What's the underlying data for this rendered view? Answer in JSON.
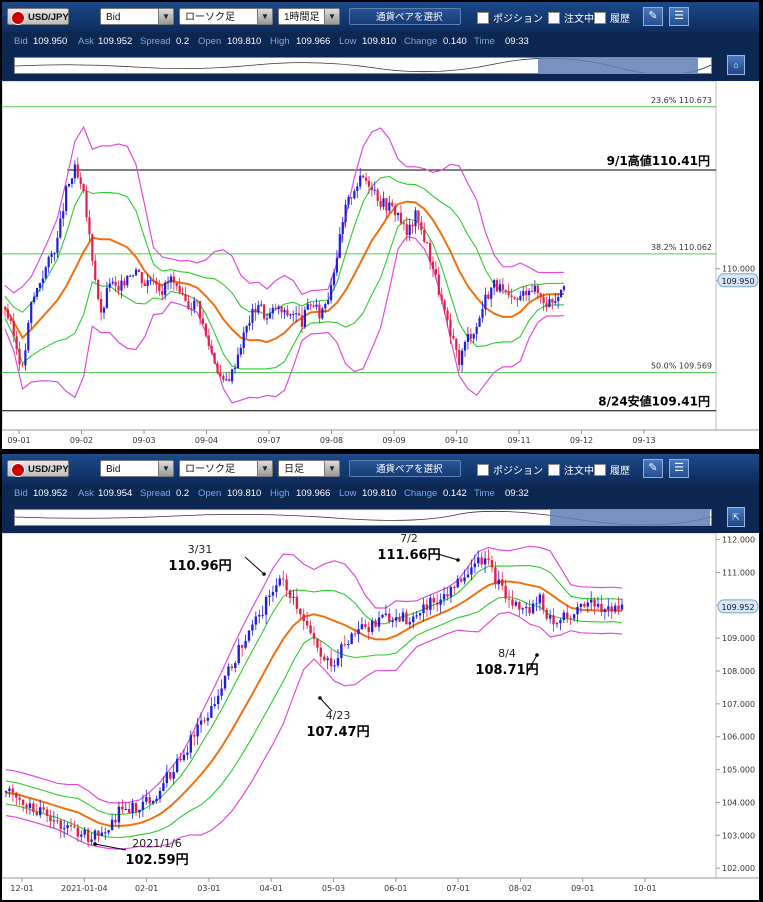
{
  "chart_data": [
    {
      "type": "candlestick",
      "toolbar": {
        "symbol": "USD/JPY",
        "price_type": "Bid",
        "chart_type": "ローソク足",
        "timeframe": "1時間足",
        "pair_select": "通貨ペアを選択",
        "positions": "ポジション",
        "orders": "注文中",
        "history": "履歴"
      },
      "info": {
        "bid": "109.950",
        "ask": "109.952",
        "spread": "0.2",
        "open": "109.810",
        "high": "109.966",
        "low": "109.810",
        "change": "0.140",
        "time": "09:33"
      },
      "x": [
        "09-01",
        "09-02",
        "09-03",
        "09-04",
        "09-07",
        "09-08",
        "09-09",
        "09-10",
        "09-11",
        "09-12",
        "09-13"
      ],
      "y_ticks": [
        {
          "value": 110.0,
          "label": "110.000"
        },
        {
          "value": 109.95,
          "label": "109.950"
        }
      ],
      "ylim": [
        109.33,
        110.78
      ],
      "fib_levels": [
        {
          "pct": "23.6%",
          "value": 110.673,
          "label": "110.673"
        },
        {
          "pct": "38.2%",
          "value": 110.062,
          "label": "110.062"
        },
        {
          "pct": "50.0%",
          "value": 109.569,
          "label": "109.569"
        }
      ],
      "hlines": [
        {
          "value": 110.41,
          "label": "9/1高値110.41円"
        },
        {
          "value": 109.41,
          "label": "8/24安値109.41円"
        }
      ],
      "last_price": "109.950",
      "closes": [
        109.84,
        109.72,
        109.58,
        109.85,
        109.95,
        110.03,
        110.12,
        110.32,
        110.41,
        110.3,
        110.05,
        109.8,
        109.95,
        109.9,
        109.98,
        110.0,
        109.94,
        109.97,
        109.91,
        109.96,
        109.88,
        109.85,
        109.86,
        109.72,
        109.62,
        109.52,
        109.57,
        109.69,
        109.79,
        109.86,
        109.79,
        109.84,
        109.81,
        109.82,
        109.78,
        109.86,
        109.81,
        109.89,
        110.06,
        110.25,
        110.34,
        110.38,
        110.35,
        110.28,
        110.26,
        110.23,
        110.14,
        110.22,
        110.13,
        110.01,
        109.86,
        109.72,
        109.62,
        109.72,
        109.76,
        109.88,
        109.94,
        109.9,
        109.86,
        109.88,
        109.93,
        109.9,
        109.86,
        109.88,
        109.95
      ],
      "colors": {
        "up": "#1f1fd8",
        "down": "#e0204a",
        "sma": "#f07010",
        "band1": "#2dcc2d",
        "band2": "#e04bde",
        "fib": "#55cc55",
        "hline": "#000000"
      }
    },
    {
      "type": "candlestick",
      "toolbar": {
        "symbol": "USD/JPY",
        "price_type": "Bid",
        "chart_type": "ローソク足",
        "timeframe": "日足",
        "pair_select": "通貨ペアを選択",
        "positions": "ポジション",
        "orders": "注文中",
        "history": "履歴"
      },
      "info": {
        "bid": "109.952",
        "ask": "109.954",
        "spread": "0.2",
        "open": "109.810",
        "high": "109.966",
        "low": "109.810",
        "change": "0.142",
        "time": "09:32"
      },
      "x": [
        "12-01",
        "2021-01-04",
        "02-01",
        "03-01",
        "04-01",
        "05-03",
        "06-01",
        "07-01",
        "08-02",
        "09-01",
        "10-01"
      ],
      "y_ticks": [
        {
          "value": 112,
          "label": "112.000"
        },
        {
          "value": 111,
          "label": "111.000"
        },
        {
          "value": 110,
          "label": "110.000"
        },
        {
          "value": 109,
          "label": "109.000"
        },
        {
          "value": 108,
          "label": "108.000"
        },
        {
          "value": 107,
          "label": "107.000"
        },
        {
          "value": 106,
          "label": "106.000"
        },
        {
          "value": 105,
          "label": "105.000"
        },
        {
          "value": 104,
          "label": "104.000"
        },
        {
          "value": 103,
          "label": "103.000"
        },
        {
          "value": 102,
          "label": "102.000"
        }
      ],
      "ylim": [
        101.7,
        112.2
      ],
      "last_price": "109.952",
      "annotations": [
        {
          "date": "3/31",
          "price": "110.96円"
        },
        {
          "date": "7/2",
          "price": "111.66円"
        },
        {
          "date": "4/23",
          "price": "107.47円"
        },
        {
          "date": "8/4",
          "price": "108.71円"
        },
        {
          "date": "2021/1/6",
          "price": "102.59円"
        }
      ],
      "closes": [
        104.3,
        104.2,
        104.0,
        103.8,
        103.6,
        103.4,
        103.2,
        103.1,
        103.0,
        102.95,
        103.3,
        103.7,
        103.8,
        103.9,
        104.1,
        104.4,
        104.9,
        105.3,
        105.9,
        106.5,
        106.9,
        107.5,
        108.2,
        108.8,
        109.3,
        109.9,
        110.5,
        110.7,
        110.2,
        109.6,
        108.8,
        108.2,
        108.3,
        108.9,
        109.2,
        109.3,
        109.4,
        109.6,
        109.7,
        109.6,
        109.8,
        110.0,
        110.2,
        110.4,
        110.7,
        111.1,
        111.5,
        111.2,
        110.6,
        110.1,
        109.9,
        109.8,
        110.2,
        109.5,
        109.7,
        109.6,
        110.1,
        110.0,
        109.8,
        109.9,
        110.0
      ],
      "colors": {
        "up": "#1f1fd8",
        "down": "#e0204a",
        "sma": "#f07010",
        "band1": "#2dcc2d",
        "band2": "#e04bde"
      }
    }
  ]
}
